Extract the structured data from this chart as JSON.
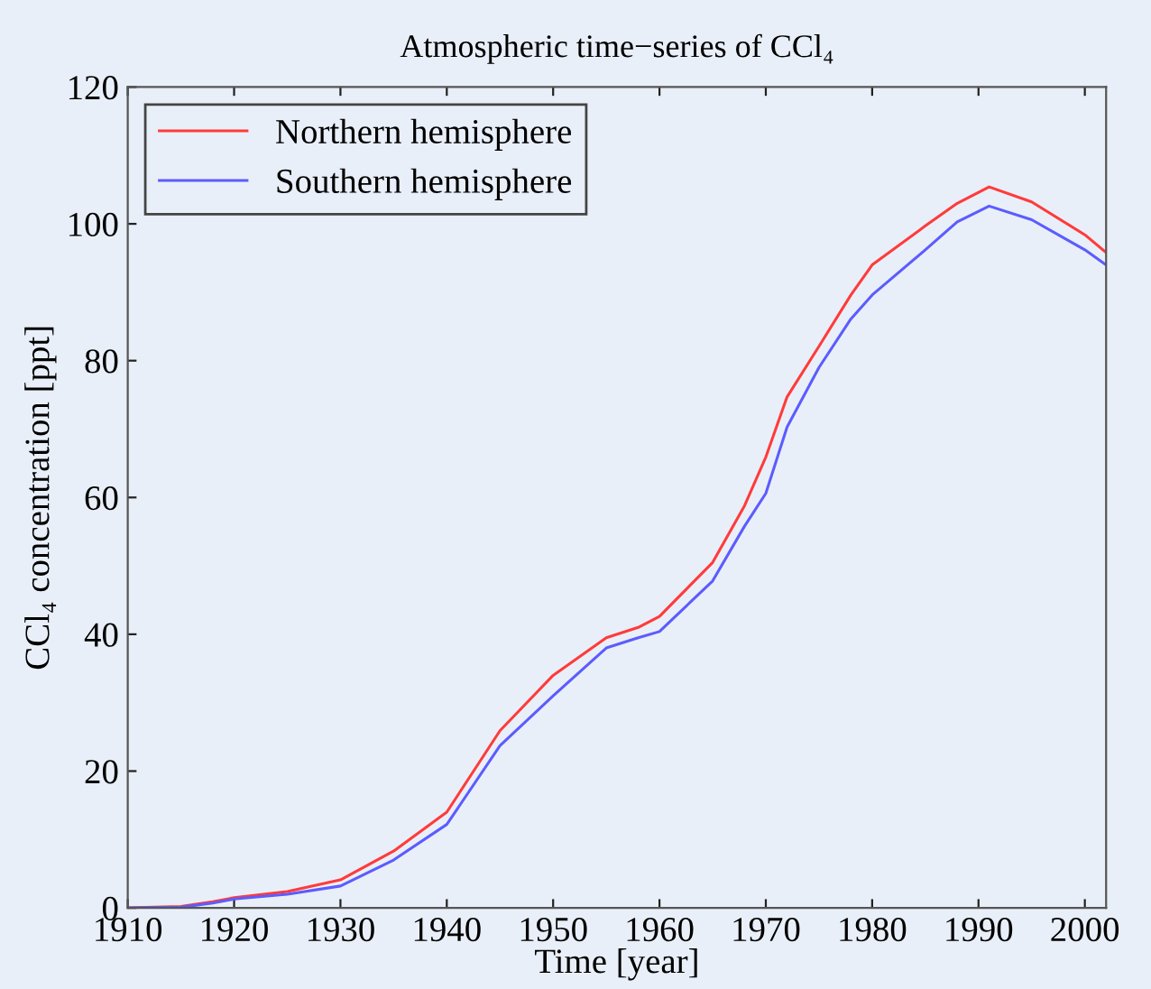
{
  "chart_data": {
    "type": "line",
    "title": "Atmospheric time−series of CCl₄",
    "xlabel": "Time [year]",
    "ylabel": "CCl₄ concentration [ppt]",
    "xlim": [
      1910,
      2002
    ],
    "xticks": [
      1910,
      1920,
      1930,
      1940,
      1950,
      1960,
      1970,
      1980,
      1990,
      2000
    ],
    "ylim": [
      0,
      120
    ],
    "yticks": [
      0,
      20,
      40,
      60,
      80,
      100,
      120
    ],
    "grid": false,
    "legend": "top left",
    "marker": "none",
    "line_style": "solid",
    "series": [
      {
        "name": "Northern hemisphere",
        "color": "#ff3b3b",
        "x": [
          1910,
          1915,
          1918,
          1920,
          1925,
          1930,
          1935,
          1940,
          1945,
          1950,
          1955,
          1958,
          1960,
          1965,
          1968,
          1970,
          1972,
          1975,
          1978,
          1980,
          1985,
          1988,
          1991,
          1995,
          2000,
          2002
        ],
        "values": [
          0,
          0.2,
          0.9,
          1.5,
          2.4,
          4.1,
          8.3,
          14,
          25.9,
          34,
          39.5,
          41,
          42.6,
          50.5,
          58.8,
          65.9,
          74.7,
          82.1,
          89.6,
          94,
          99.7,
          103,
          105.4,
          103.2,
          98.4,
          95.8
        ]
      },
      {
        "name": "Southern hemisphere",
        "color": "#5c5cff",
        "x": [
          1910,
          1915,
          1918,
          1920,
          1925,
          1930,
          1935,
          1940,
          1945,
          1950,
          1955,
          1958,
          1960,
          1965,
          1968,
          1970,
          1972,
          1975,
          1978,
          1980,
          1985,
          1988,
          1991,
          1995,
          2000,
          2002
        ],
        "values": [
          0,
          0.1,
          0.7,
          1.3,
          2.0,
          3.2,
          7,
          12.2,
          23.7,
          31,
          38,
          39.5,
          40.4,
          47.8,
          55.8,
          60.6,
          70.3,
          79,
          86.1,
          89.6,
          96.2,
          100.3,
          102.6,
          100.6,
          96.2,
          94
        ]
      }
    ]
  }
}
